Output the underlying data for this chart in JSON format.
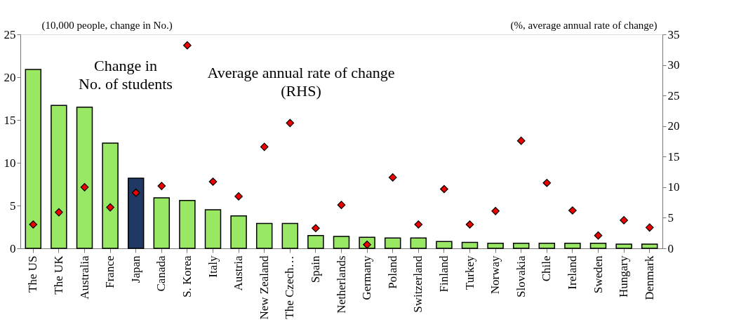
{
  "chart_data": {
    "type": "bar",
    "ylabel": "(10,000 people, change in No.)",
    "y2label": "(%, average annual rate of change)",
    "categories": [
      "The US",
      "The UK",
      "Australia",
      "France",
      "Japan",
      "Canada",
      "S. Korea",
      "Italy",
      "Austria",
      "New Zealand",
      "The Czech…",
      "Spain",
      "Netherlands",
      "Germany",
      "Poland",
      "Switzerland",
      "Finland",
      "Turkey",
      "Norway",
      "Slovakia",
      "Chile",
      "Ireland",
      "Sweden",
      "Hungary",
      "Denmark"
    ],
    "series": [
      {
        "values": [
          20.9,
          16.7,
          16.5,
          12.3,
          8.2,
          5.9,
          5.6,
          4.5,
          3.8,
          2.9,
          2.9,
          1.5,
          1.4,
          1.3,
          1.2,
          1.2,
          0.8,
          0.7,
          0.6,
          0.6,
          0.6,
          0.6,
          0.6,
          0.5,
          0.5
        ],
        "colors": [
          "#99e865",
          "#99e865",
          "#99e865",
          "#99e865",
          "#1f3864",
          "#99e865",
          "#99e865",
          "#99e865",
          "#99e865",
          "#99e865",
          "#99e865",
          "#99e865",
          "#99e865",
          "#99e865",
          "#99e865",
          "#99e865",
          "#99e865",
          "#99e865",
          "#99e865",
          "#99e865",
          "#99e865",
          "#99e865",
          "#99e865",
          "#99e865",
          "#99e865"
        ]
      },
      {
        "type": "scatter",
        "axis": "y2",
        "color": "#ee0000",
        "values": [
          3.9,
          5.9,
          10.0,
          6.7,
          9.1,
          10.2,
          33.2,
          10.9,
          8.5,
          16.6,
          20.5,
          3.3,
          7.1,
          0.6,
          11.6,
          3.9,
          9.7,
          3.9,
          6.1,
          17.6,
          10.7,
          6.2,
          2.1,
          4.6,
          3.4
        ]
      }
    ],
    "ylim": [
      0,
      25
    ],
    "yticks": [
      0,
      5,
      10,
      15,
      20,
      25
    ],
    "y2lim": [
      0,
      35
    ],
    "y2ticks": [
      0,
      5,
      10,
      15,
      20,
      25,
      30,
      35
    ],
    "marker": "diamond",
    "grid": false,
    "annotations": [
      "Change in\nNo. of students",
      "Average annual rate of change\n(RHS)"
    ]
  }
}
